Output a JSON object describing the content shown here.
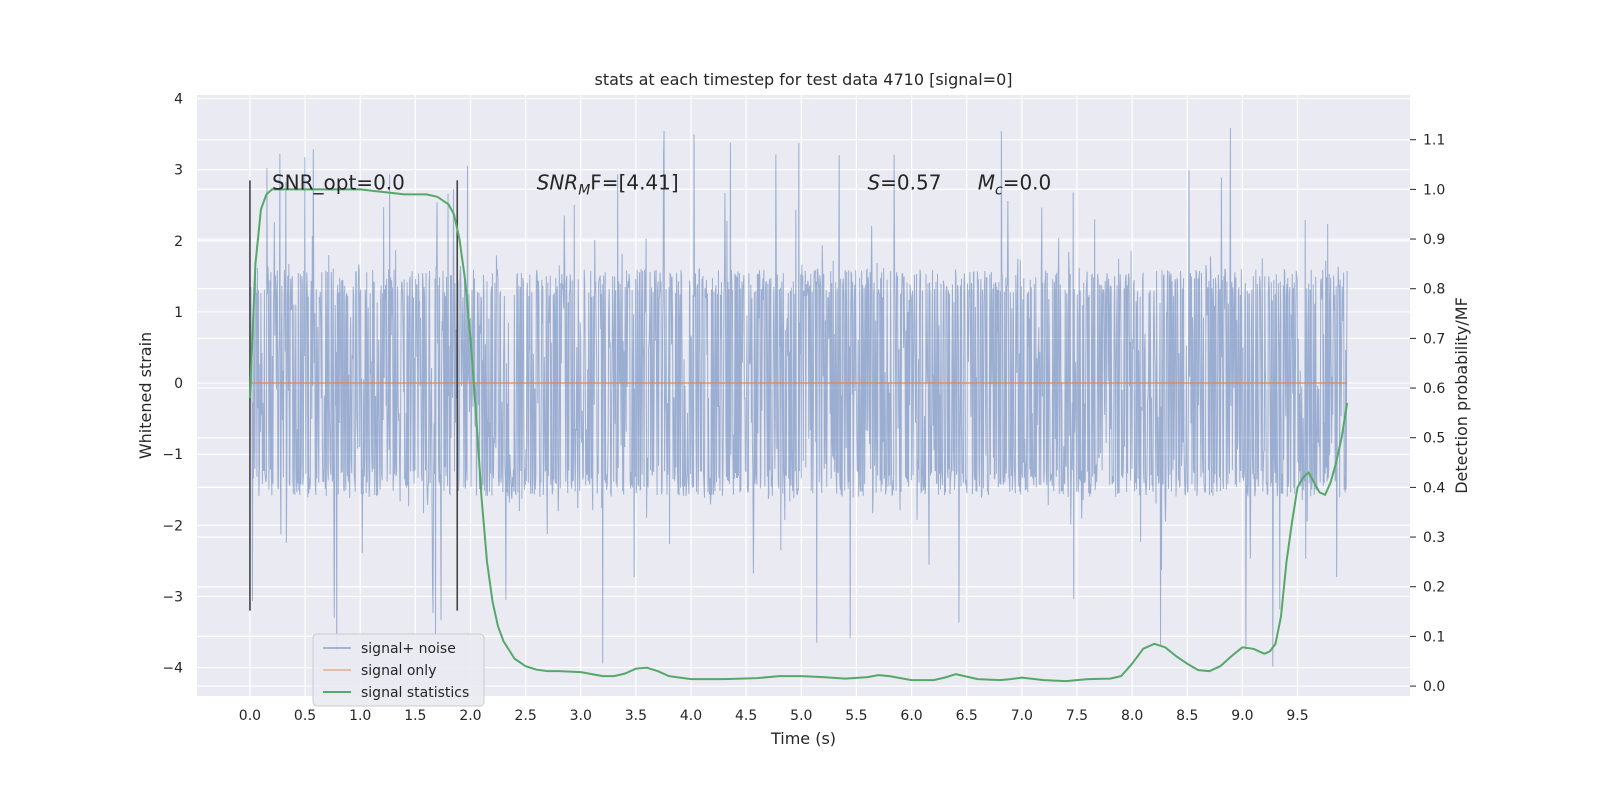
{
  "chart_data": {
    "type": "line",
    "title": "stats at each timestep for test data 4710 [signal=0]",
    "xlabel": "Time (s)",
    "ylabel": "Whitened strain",
    "y2label": "Detection probability/MF",
    "xlim": [
      -0.48,
      10.52
    ],
    "ylim": [
      -4.4,
      4.05
    ],
    "y2lim": [
      -0.02,
      1.19
    ],
    "xticks": [
      0.0,
      0.5,
      1.0,
      1.5,
      2.0,
      2.5,
      3.0,
      3.5,
      4.0,
      4.5,
      5.0,
      5.5,
      6.0,
      6.5,
      7.0,
      7.5,
      8.0,
      8.5,
      9.0,
      9.5
    ],
    "xtick_labels": [
      "0.0",
      "0.5",
      "1.0",
      "1.5",
      "2.0",
      "2.5",
      "3.0",
      "3.5",
      "4.0",
      "4.5",
      "5.0",
      "5.5",
      "6.0",
      "6.5",
      "7.0",
      "7.5",
      "8.0",
      "8.5",
      "9.0",
      "9.5"
    ],
    "yticks": [
      -4,
      -3,
      -2,
      -1,
      0,
      1,
      2,
      3,
      4
    ],
    "ytick_labels": [
      "−4",
      "−3",
      "−2",
      "−1",
      "0",
      "1",
      "2",
      "3",
      "4"
    ],
    "y2ticks": [
      0.0,
      0.1,
      0.2,
      0.3,
      0.4,
      0.5,
      0.6,
      0.7,
      0.8,
      0.9,
      1.0,
      1.1
    ],
    "y2tick_labels": [
      "0.0",
      "0.1",
      "0.2",
      "0.3",
      "0.4",
      "0.5",
      "0.6",
      "0.7",
      "0.8",
      "0.9",
      "1.0",
      "1.1"
    ],
    "grid": true,
    "legend_position": "lower-left",
    "series": [
      {
        "name": "signal+ noise",
        "color": "#4c72b0",
        "axis": "left",
        "kind": "noise",
        "x_range": [
          0.0,
          9.95
        ],
        "typical_range": [
          -1.6,
          1.6
        ],
        "extreme_range": [
          -4.0,
          3.65
        ]
      },
      {
        "name": "signal only",
        "color": "#dd8452",
        "axis": "left",
        "x": [
          0.0,
          9.95
        ],
        "y": [
          0.0,
          0.0
        ]
      },
      {
        "name": "signal statistics",
        "color": "#55a868",
        "axis": "right",
        "x": [
          0.0,
          0.05,
          0.1,
          0.15,
          0.2,
          0.3,
          0.5,
          0.8,
          1.0,
          1.2,
          1.4,
          1.5,
          1.6,
          1.7,
          1.8,
          1.85,
          1.9,
          1.95,
          2.0,
          2.05,
          2.1,
          2.15,
          2.2,
          2.25,
          2.3,
          2.4,
          2.5,
          2.6,
          2.7,
          2.8,
          3.0,
          3.2,
          3.3,
          3.4,
          3.5,
          3.6,
          3.7,
          3.8,
          4.0,
          4.3,
          4.6,
          4.8,
          5.0,
          5.2,
          5.4,
          5.6,
          5.7,
          5.8,
          6.0,
          6.2,
          6.3,
          6.4,
          6.6,
          6.8,
          6.9,
          7.0,
          7.2,
          7.4,
          7.6,
          7.8,
          7.9,
          8.0,
          8.1,
          8.2,
          8.3,
          8.4,
          8.5,
          8.6,
          8.7,
          8.8,
          8.9,
          9.0,
          9.1,
          9.2,
          9.25,
          9.3,
          9.35,
          9.4,
          9.45,
          9.5,
          9.55,
          9.6,
          9.65,
          9.7,
          9.75,
          9.8,
          9.85,
          9.9,
          9.95
        ],
        "y": [
          0.58,
          0.85,
          0.96,
          0.99,
          1.0,
          1.0,
          1.0,
          1.0,
          1.0,
          0.995,
          0.99,
          0.99,
          0.99,
          0.985,
          0.97,
          0.95,
          0.9,
          0.82,
          0.7,
          0.55,
          0.38,
          0.25,
          0.17,
          0.12,
          0.09,
          0.055,
          0.04,
          0.033,
          0.03,
          0.03,
          0.028,
          0.02,
          0.02,
          0.025,
          0.035,
          0.037,
          0.03,
          0.02,
          0.014,
          0.014,
          0.016,
          0.02,
          0.02,
          0.018,
          0.015,
          0.018,
          0.022,
          0.02,
          0.012,
          0.012,
          0.017,
          0.024,
          0.014,
          0.012,
          0.014,
          0.017,
          0.012,
          0.01,
          0.014,
          0.015,
          0.02,
          0.045,
          0.075,
          0.085,
          0.078,
          0.06,
          0.045,
          0.032,
          0.03,
          0.04,
          0.06,
          0.078,
          0.075,
          0.065,
          0.07,
          0.085,
          0.14,
          0.25,
          0.33,
          0.4,
          0.42,
          0.43,
          0.41,
          0.39,
          0.385,
          0.41,
          0.45,
          0.5,
          0.57
        ]
      }
    ],
    "vertical_lines": [
      {
        "x": 0.0,
        "y_from": -3.2,
        "y_to": 2.85
      },
      {
        "x": 1.88,
        "y_from": -3.2,
        "y_to": 2.85
      }
    ],
    "annotations": [
      {
        "text": "SNR_opt=0.0",
        "x": 0.2,
        "y": 2.72
      },
      {
        "text_main": "SNR",
        "text_sub": "M",
        "text_rest": "F=[4.41]",
        "x": 2.6,
        "y": 2.72
      },
      {
        "text_main": "S",
        "text_rest": "=0.57",
        "x": 5.6,
        "y": 2.72
      },
      {
        "text_main": "M",
        "text_sub": "c",
        "text_rest": "=0.0",
        "x": 6.6,
        "y": 2.72
      }
    ]
  }
}
